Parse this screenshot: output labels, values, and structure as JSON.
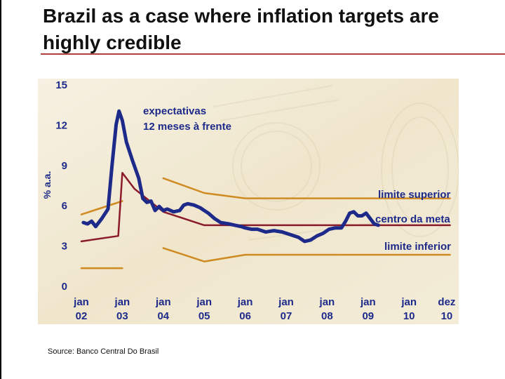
{
  "title": "Brazil as a case where inflation targets are highly credible",
  "source": "Source: Banco Central Do Brasil",
  "chart_data": {
    "type": "line",
    "ylabel": "% a.a.",
    "ylim": [
      0,
      15
    ],
    "yticks": [
      "15",
      "12",
      "9",
      "6",
      "3",
      "0"
    ],
    "xticks": [
      {
        "top": "jan",
        "bottom": "02"
      },
      {
        "top": "jan",
        "bottom": "03"
      },
      {
        "top": "jan",
        "bottom": "04"
      },
      {
        "top": "jan",
        "bottom": "05"
      },
      {
        "top": "jan",
        "bottom": "06"
      },
      {
        "top": "jan",
        "bottom": "07"
      },
      {
        "top": "jan",
        "bottom": "08"
      },
      {
        "top": "jan",
        "bottom": "09"
      },
      {
        "top": "jan",
        "bottom": "10"
      },
      {
        "top": "dez",
        "bottom": "10"
      }
    ],
    "annotations": {
      "expectations_line1": "expectativas",
      "expectations_line2": "12 meses à frente",
      "upper": "limite superior",
      "center": "centro da meta",
      "lower": "limite inferior"
    },
    "colors": {
      "expectations": "#1e2a8a",
      "center": "#8b1a2b",
      "bounds": "#d08a22",
      "text": "#1e2a8a",
      "background": "#f1ead6"
    },
    "x_note": "x in years since Jan 2002",
    "series": [
      {
        "name": "expectativas 12 meses à frente",
        "points": [
          [
            0.05,
            4.7
          ],
          [
            0.15,
            4.6
          ],
          [
            0.25,
            4.8
          ],
          [
            0.35,
            4.4
          ],
          [
            0.5,
            5.0
          ],
          [
            0.65,
            5.7
          ],
          [
            0.75,
            9.0
          ],
          [
            0.85,
            12.0
          ],
          [
            0.92,
            13.0
          ],
          [
            1.0,
            12.3
          ],
          [
            1.1,
            10.7
          ],
          [
            1.25,
            9.3
          ],
          [
            1.4,
            8.0
          ],
          [
            1.5,
            6.5
          ],
          [
            1.6,
            6.2
          ],
          [
            1.7,
            6.3
          ],
          [
            1.8,
            5.6
          ],
          [
            1.9,
            5.9
          ],
          [
            2.0,
            5.6
          ],
          [
            2.1,
            5.7
          ],
          [
            2.25,
            5.5
          ],
          [
            2.4,
            5.6
          ],
          [
            2.5,
            6.0
          ],
          [
            2.6,
            6.1
          ],
          [
            2.75,
            6.0
          ],
          [
            2.9,
            5.8
          ],
          [
            3.0,
            5.6
          ],
          [
            3.1,
            5.4
          ],
          [
            3.25,
            5.0
          ],
          [
            3.4,
            4.7
          ],
          [
            3.6,
            4.6
          ],
          [
            3.75,
            4.5
          ],
          [
            3.9,
            4.4
          ],
          [
            4.0,
            4.3
          ],
          [
            4.15,
            4.2
          ],
          [
            4.3,
            4.2
          ],
          [
            4.5,
            4.0
          ],
          [
            4.7,
            4.1
          ],
          [
            4.9,
            4.0
          ],
          [
            5.1,
            3.8
          ],
          [
            5.3,
            3.6
          ],
          [
            5.45,
            3.3
          ],
          [
            5.6,
            3.4
          ],
          [
            5.75,
            3.7
          ],
          [
            5.9,
            3.9
          ],
          [
            6.05,
            4.2
          ],
          [
            6.2,
            4.3
          ],
          [
            6.35,
            4.3
          ],
          [
            6.45,
            4.8
          ],
          [
            6.55,
            5.4
          ],
          [
            6.65,
            5.5
          ],
          [
            6.75,
            5.2
          ],
          [
            6.85,
            5.2
          ],
          [
            6.95,
            5.4
          ],
          [
            7.05,
            5.0
          ],
          [
            7.15,
            4.6
          ],
          [
            7.25,
            4.5
          ]
        ]
      },
      {
        "name": "centro da meta",
        "points": [
          [
            0.0,
            3.3
          ],
          [
            0.9,
            3.7
          ],
          [
            1.0,
            8.4
          ],
          [
            1.3,
            7.2
          ],
          [
            2.0,
            5.5
          ],
          [
            3.0,
            4.5
          ],
          [
            9.0,
            4.5
          ]
        ]
      },
      {
        "name": "limite superior",
        "points": [
          [
            0.0,
            5.3
          ],
          [
            1.0,
            6.3
          ]
        ],
        "segment2": [
          [
            2.0,
            8.0
          ],
          [
            3.0,
            6.9
          ],
          [
            4.0,
            6.5
          ],
          [
            9.0,
            6.5
          ]
        ]
      },
      {
        "name": "limite inferior",
        "points": [
          [
            0.0,
            1.3
          ],
          [
            1.0,
            1.3
          ]
        ],
        "segment2": [
          [
            2.0,
            2.8
          ],
          [
            3.0,
            1.8
          ],
          [
            4.0,
            2.3
          ],
          [
            9.0,
            2.3
          ]
        ]
      }
    ]
  }
}
